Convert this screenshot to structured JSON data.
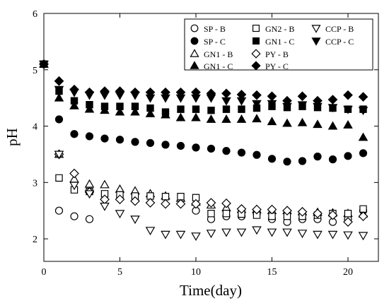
{
  "chart_data": {
    "type": "scatter",
    "xlabel": "Time(day)",
    "ylabel": "pH",
    "xlim": [
      0,
      22
    ],
    "ylim": [
      1.6,
      6
    ],
    "xticks": [
      0,
      5,
      10,
      15,
      20
    ],
    "yticks": [
      2,
      3,
      4,
      5,
      6
    ],
    "legend_position": "top-right",
    "series": [
      {
        "name": "SP - B",
        "marker": "circle-open",
        "x": [
          0,
          1,
          2,
          3,
          10,
          11,
          12,
          13,
          14,
          15,
          16,
          17,
          18,
          19,
          20,
          21
        ],
        "y": [
          5.1,
          2.5,
          2.4,
          2.35,
          2.5,
          2.35,
          2.4,
          2.4,
          2.45,
          2.35,
          2.3,
          2.35,
          2.35,
          2.3,
          2.35,
          2.5
        ]
      },
      {
        "name": "SP - C",
        "marker": "circle-filled",
        "x": [
          0,
          1,
          2,
          3,
          4,
          5,
          6,
          7,
          8,
          9,
          10,
          11,
          12,
          13,
          14,
          15,
          16,
          17,
          18,
          19,
          20,
          21
        ],
        "y": [
          5.1,
          4.12,
          3.86,
          3.82,
          3.78,
          3.76,
          3.72,
          3.7,
          3.67,
          3.65,
          3.62,
          3.6,
          3.56,
          3.53,
          3.49,
          3.42,
          3.37,
          3.38,
          3.46,
          3.41,
          3.47,
          3.52
        ]
      },
      {
        "name": "GN1 - B",
        "marker": "triangle-up-open",
        "x": [
          0,
          1,
          2,
          3,
          4,
          5,
          6,
          7,
          8,
          9,
          10,
          11,
          12,
          13,
          14,
          15,
          16,
          17,
          18,
          19,
          20,
          21
        ],
        "y": [
          5.1,
          3.5,
          3.06,
          2.97,
          2.96,
          2.88,
          2.85,
          2.8,
          2.76,
          2.72,
          2.65,
          2.6,
          2.55,
          2.52,
          2.52,
          2.5,
          2.5,
          2.48,
          2.47,
          2.46,
          2.45,
          2.44
        ]
      },
      {
        "name": "GN1 - C",
        "marker": "triangle-up-filled",
        "x": [
          0,
          1,
          2,
          3,
          4,
          5,
          6,
          7,
          8,
          9,
          10,
          11,
          12,
          13,
          14,
          15,
          16,
          17,
          18,
          19,
          20,
          21
        ],
        "y": [
          5.1,
          4.5,
          4.36,
          4.3,
          4.28,
          4.25,
          4.25,
          4.22,
          4.2,
          4.15,
          4.15,
          4.12,
          4.12,
          4.12,
          4.13,
          4.08,
          4.05,
          4.06,
          4.03,
          4.0,
          4.02,
          3.8
        ]
      },
      {
        "name": "GN2 - B",
        "marker": "square-open",
        "x": [
          0,
          1,
          2,
          3,
          4,
          5,
          6,
          7,
          8,
          9,
          10,
          11,
          12,
          13,
          14,
          15,
          16,
          17,
          18,
          19,
          20,
          21
        ],
        "y": [
          5.1,
          3.08,
          2.87,
          2.84,
          2.8,
          2.78,
          2.76,
          2.76,
          2.75,
          2.75,
          2.73,
          2.45,
          2.45,
          2.44,
          2.42,
          2.4,
          2.4,
          2.4,
          2.42,
          2.45,
          2.45,
          2.53
        ]
      },
      {
        "name": "GN1 - C",
        "marker": "square-filled",
        "x": [
          0,
          1,
          2,
          3,
          4,
          5,
          6,
          7,
          8,
          9,
          10,
          11,
          12,
          13,
          14,
          15,
          16,
          17,
          18,
          19,
          20,
          21
        ],
        "y": [
          5.1,
          4.62,
          4.45,
          4.38,
          4.35,
          4.35,
          4.35,
          4.32,
          4.25,
          4.3,
          4.3,
          4.28,
          4.3,
          4.3,
          4.32,
          4.35,
          4.33,
          4.35,
          4.33,
          4.32,
          4.3,
          4.3
        ]
      },
      {
        "name": "PY - B",
        "marker": "diamond-open",
        "x": [
          0,
          1,
          2,
          3,
          4,
          5,
          6,
          7,
          8,
          9,
          10,
          11,
          12,
          13,
          14,
          15,
          16,
          17,
          18,
          19,
          20,
          21
        ],
        "y": [
          5.1,
          3.5,
          3.16,
          2.83,
          2.7,
          2.7,
          2.67,
          2.64,
          2.62,
          2.62,
          2.62,
          2.64,
          2.63,
          2.53,
          2.52,
          2.52,
          2.5,
          2.48,
          2.45,
          2.42,
          2.3,
          2.4
        ]
      },
      {
        "name": "PY - C",
        "marker": "diamond-filled",
        "x": [
          0,
          1,
          2,
          3,
          4,
          5,
          6,
          7,
          8,
          9,
          10,
          11,
          12,
          13,
          14,
          15,
          16,
          17,
          18,
          19,
          20,
          21
        ],
        "y": [
          5.1,
          4.8,
          4.65,
          4.6,
          4.62,
          4.62,
          4.6,
          4.6,
          4.6,
          4.6,
          4.6,
          4.58,
          4.58,
          4.56,
          4.55,
          4.53,
          4.45,
          4.53,
          4.45,
          4.47,
          4.55,
          4.52
        ]
      },
      {
        "name": "CCP - B",
        "marker": "triangle-down-open",
        "x": [
          0,
          1,
          2,
          3,
          4,
          5,
          6,
          7,
          8,
          9,
          10,
          11,
          12,
          13,
          14,
          15,
          16,
          17,
          18,
          19,
          20,
          21
        ],
        "y": [
          5.1,
          3.5,
          2.95,
          2.8,
          2.58,
          2.45,
          2.35,
          2.15,
          2.08,
          2.08,
          2.05,
          2.1,
          2.12,
          2.12,
          2.16,
          2.12,
          2.12,
          2.1,
          2.08,
          2.08,
          2.07,
          2.06
        ]
      },
      {
        "name": "CCP - C",
        "marker": "triangle-down-filled",
        "x": [
          0,
          1,
          2,
          3,
          4,
          5,
          6,
          7,
          8,
          9,
          10,
          11,
          12,
          13,
          14,
          15,
          16,
          17,
          18,
          19,
          20,
          21
        ],
        "y": [
          5.1,
          4.65,
          4.6,
          4.55,
          4.55,
          4.55,
          4.55,
          4.5,
          4.5,
          4.5,
          4.5,
          4.5,
          4.45,
          4.45,
          4.4,
          4.4,
          4.35,
          4.38,
          4.35,
          4.33,
          4.3,
          4.28
        ]
      }
    ]
  }
}
